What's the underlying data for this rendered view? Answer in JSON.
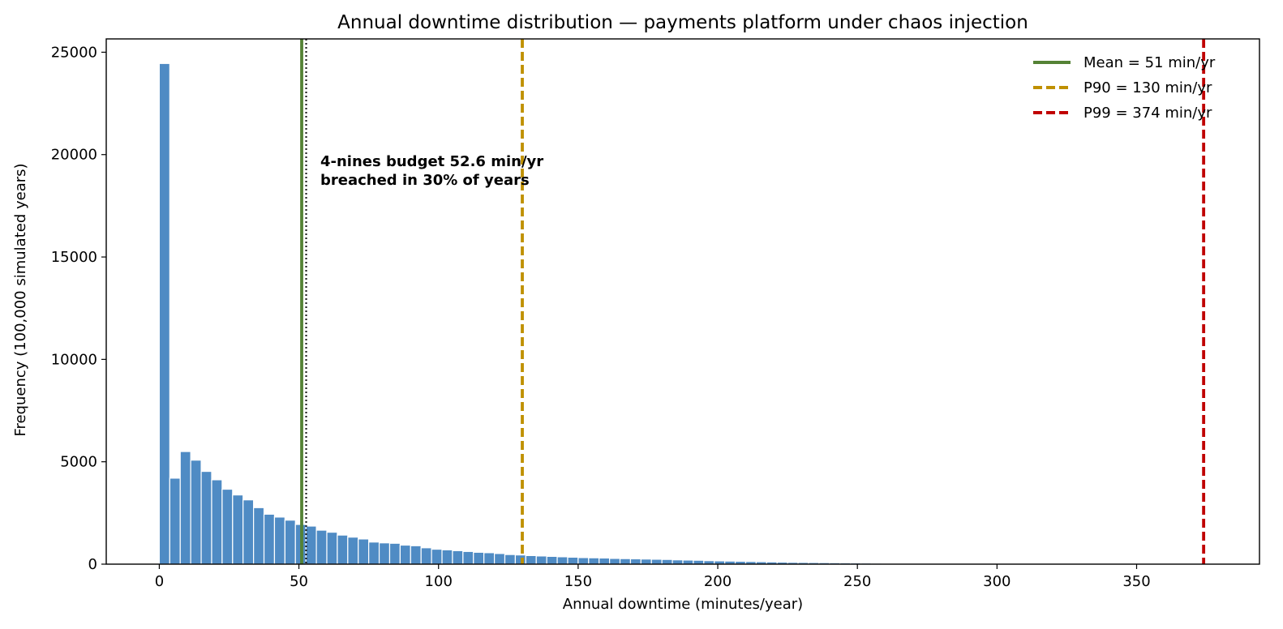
{
  "chart_data": {
    "type": "histogram",
    "title": "Annual downtime distribution — payments platform under chaos injection",
    "xlabel": "Annual downtime  (minutes/year)",
    "ylabel": "Frequency  (100,000 simulated years)",
    "xlim": [
      -19,
      394
    ],
    "ylim": [
      0,
      25650
    ],
    "x_ticks": [
      "0",
      "50",
      "100",
      "150",
      "200",
      "250",
      "300",
      "350"
    ],
    "y_ticks": [
      "0",
      "5000",
      "10000",
      "15000",
      "20000",
      "25000"
    ],
    "bin_start": 0,
    "bin_width": 3.75,
    "series": [
      {
        "name": "Annual downtime",
        "color": "#4f8bc4",
        "values": [
          24450,
          4200,
          5500,
          5080,
          4530,
          4120,
          3660,
          3380,
          3140,
          2760,
          2440,
          2300,
          2150,
          1940,
          1860,
          1660,
          1560,
          1420,
          1320,
          1230,
          1080,
          1040,
          1020,
          930,
          900,
          800,
          730,
          700,
          660,
          620,
          580,
          560,
          520,
          470,
          450,
          420,
          400,
          380,
          360,
          340,
          320,
          310,
          300,
          280,
          270,
          260,
          250,
          240,
          230,
          210,
          200,
          190,
          170,
          160,
          150,
          140,
          130,
          120,
          110,
          100,
          90,
          85,
          80,
          75,
          70,
          65,
          60,
          55,
          50,
          45,
          40,
          35,
          30,
          28,
          25,
          22,
          20,
          18,
          15,
          12,
          10,
          9,
          8,
          7,
          6,
          5,
          4,
          3,
          3,
          2,
          2,
          2,
          1,
          1,
          1,
          1,
          1,
          1,
          1,
          1
        ]
      }
    ],
    "reference_lines": [
      {
        "name": "Mean = 51 min/yr",
        "x": 51,
        "color": "#548235",
        "style": "solid",
        "in_legend": true
      },
      {
        "name": "P90 = 130 min/yr",
        "x": 130,
        "color": "#bf9000",
        "style": "dashed",
        "in_legend": true
      },
      {
        "name": "P99 = 374 min/yr",
        "x": 374,
        "color": "#c00000",
        "style": "dashed",
        "in_legend": true
      },
      {
        "name": "",
        "x": 52.6,
        "color": "#222222",
        "style": "dotted",
        "in_legend": false
      }
    ],
    "annotation": [
      "4-nines budget 52.6 min/yr",
      "breached in 30% of years"
    ],
    "legend_position": "top-right",
    "grid": false
  }
}
